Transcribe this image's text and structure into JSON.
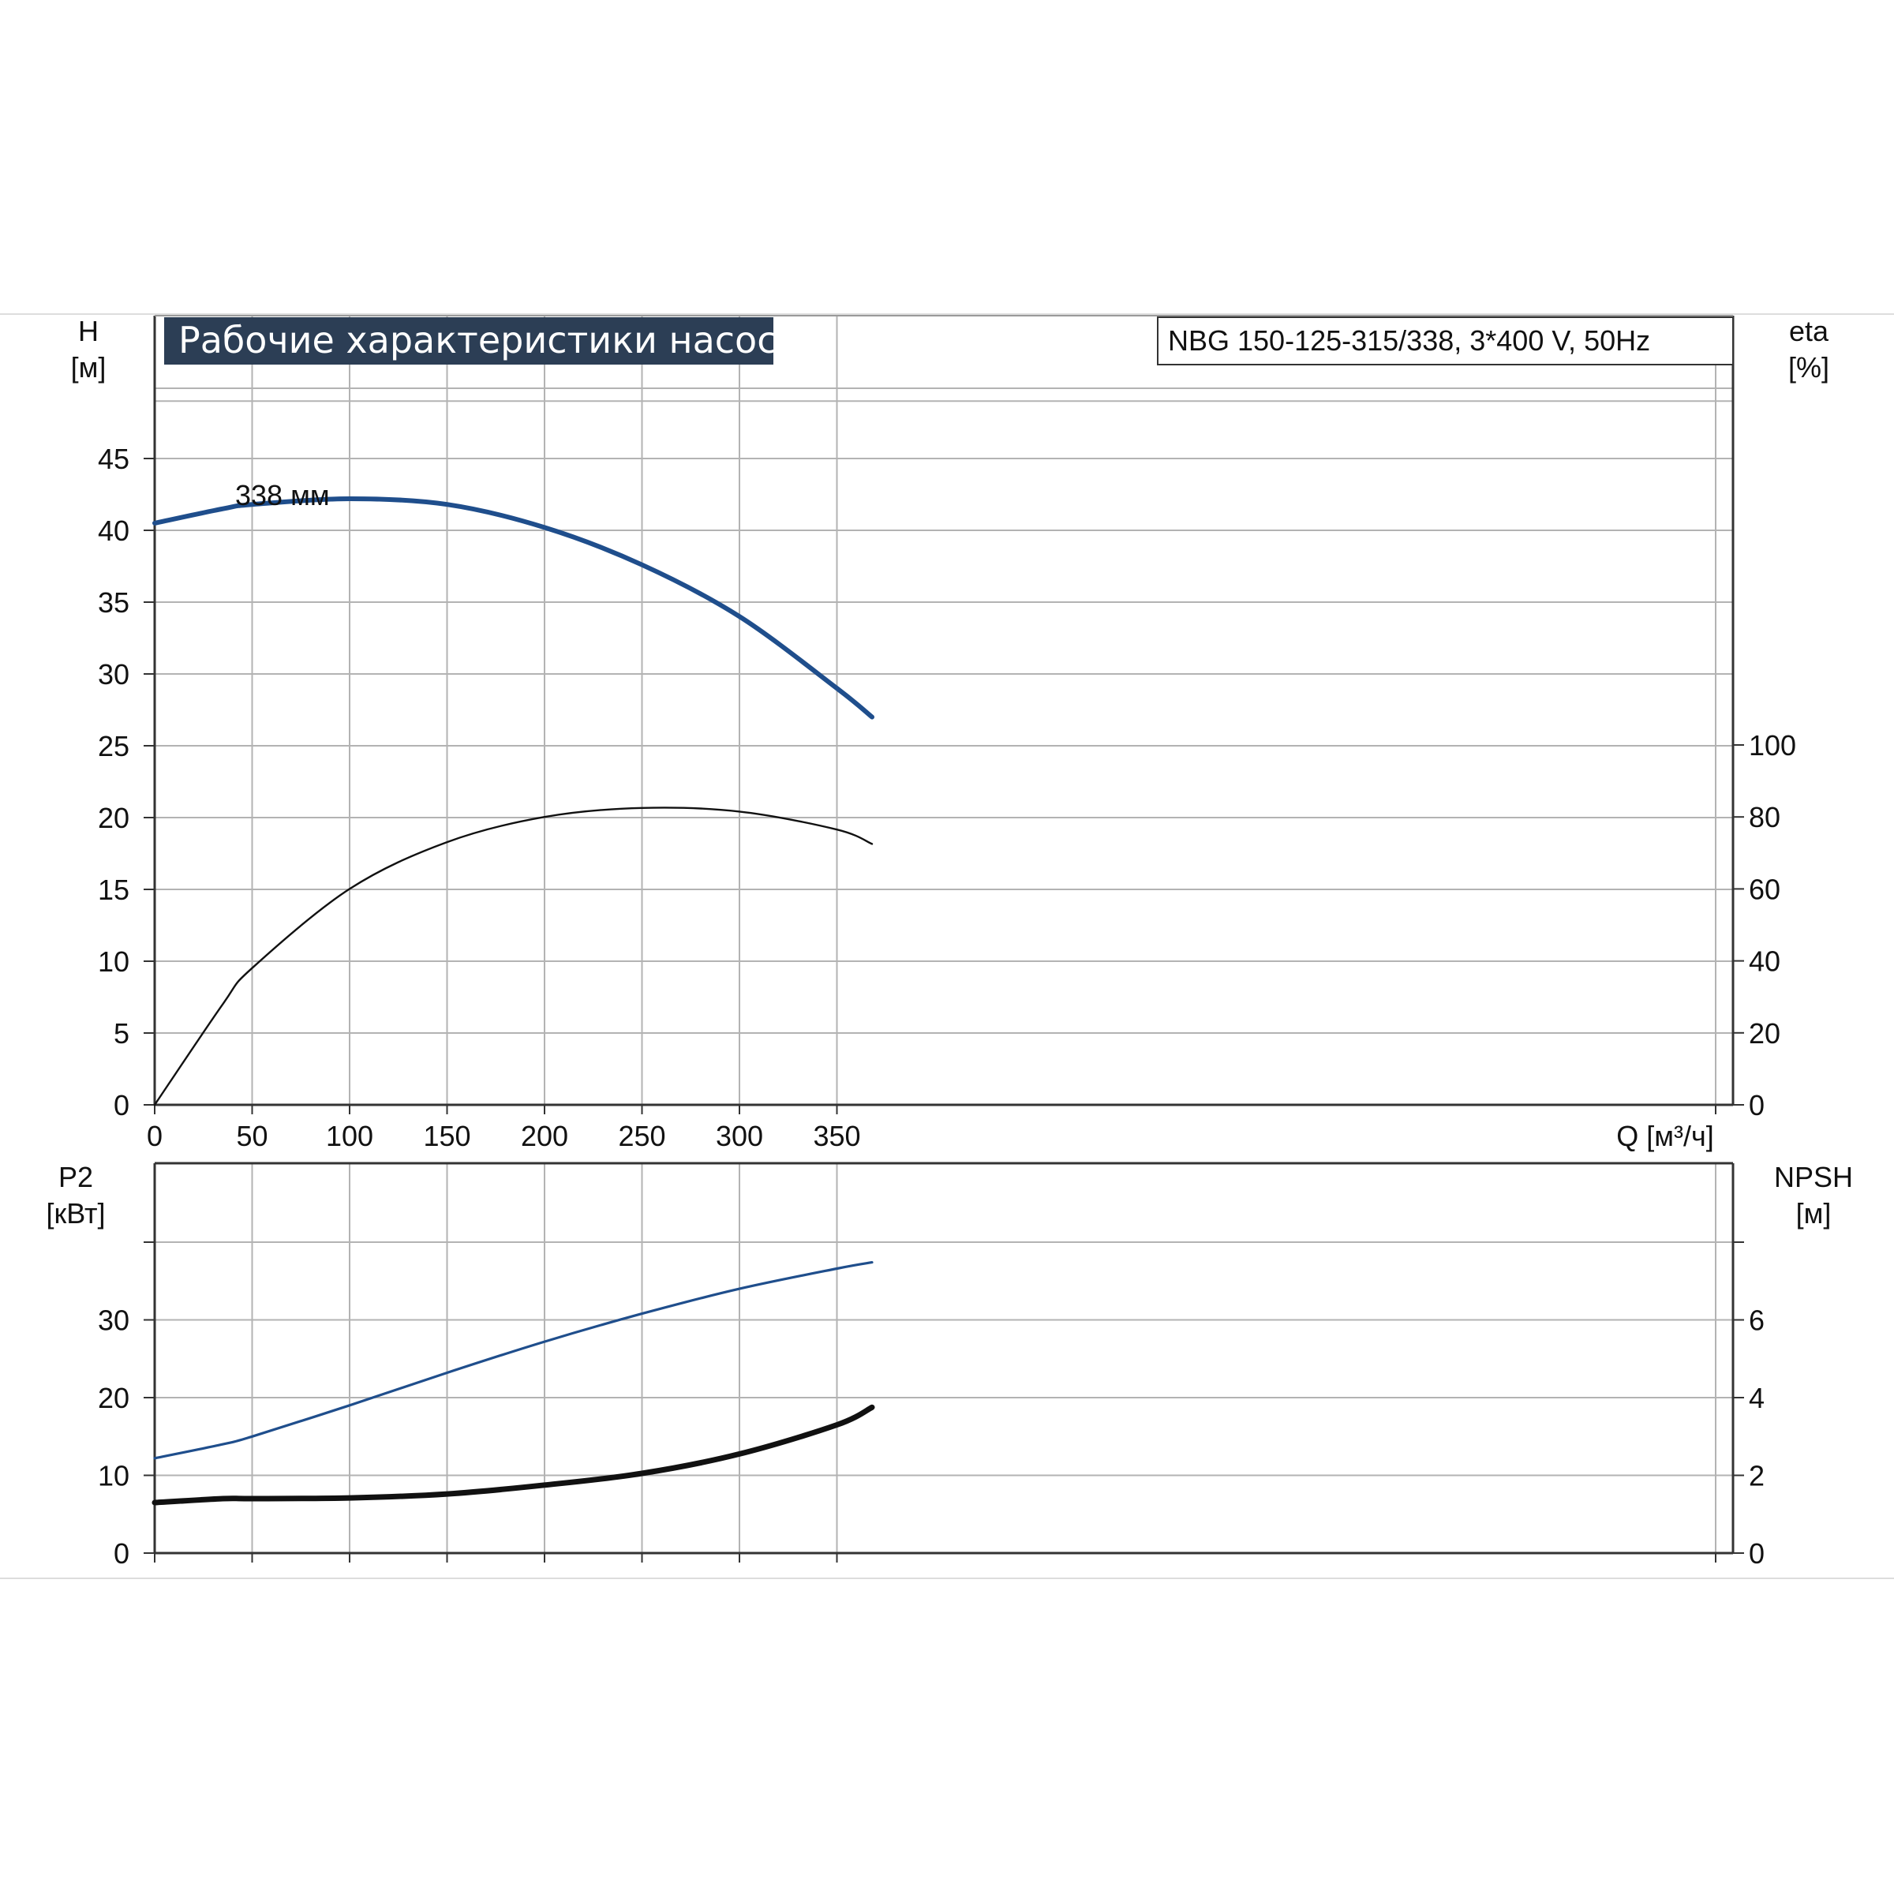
{
  "title": "Рабочие характеристики насоса",
  "model": "NBG 150-125-315/338, 3*400 V, 50Hz",
  "colors": {
    "blue": "#1f4e8c",
    "black": "#111111",
    "grid": "#b3b3b3",
    "title_bg": "#2c3e55"
  },
  "chart_data": [
    {
      "type": "line",
      "xlabel": "Q [м³/ч]",
      "ylabel_left": [
        "H",
        "[м]"
      ],
      "ylabel_right": [
        "eta",
        "[%]"
      ],
      "xlim": [
        0,
        400
      ],
      "ylim_left": [
        0,
        50
      ],
      "ylim_right": [
        0,
        125
      ],
      "x_ticks": [
        "0",
        "50",
        "100",
        "150",
        "200",
        "250",
        "300",
        "350"
      ],
      "y_ticks_left": [
        "0",
        "5",
        "10",
        "15",
        "20",
        "25",
        "30",
        "35",
        "40",
        "45"
      ],
      "y_ticks_right": [
        "0",
        "20",
        "40",
        "60",
        "80",
        "100"
      ],
      "annotation": "338 мм",
      "grid": true,
      "series": [
        {
          "axis": "left",
          "color": "#1f4e8c",
          "x": [
            0,
            35,
            50,
            100,
            150,
            200,
            250,
            300,
            350,
            368
          ],
          "values": [
            40.5,
            41.5,
            41.8,
            42.2,
            41.8,
            40.2,
            37.6,
            34,
            29,
            27
          ]
        },
        {
          "axis": "right",
          "color": "#111111",
          "x": [
            0,
            35,
            50,
            100,
            150,
            200,
            250,
            300,
            350,
            368
          ],
          "values": [
            0,
            28,
            38,
            60,
            73,
            80,
            82.5,
            81.5,
            76.5,
            72.5
          ]
        }
      ]
    },
    {
      "type": "line",
      "ylabel_left": [
        "P2",
        "[кВт]"
      ],
      "ylabel_right": [
        "NPSH",
        "[м]"
      ],
      "xlim": [
        0,
        400
      ],
      "ylim_left": [
        0,
        50
      ],
      "ylim_right": [
        0,
        10
      ],
      "y_ticks_left": [
        "0",
        "10",
        "20",
        "30"
      ],
      "y_ticks_right": [
        "0",
        "2",
        "4",
        "6"
      ],
      "grid": true,
      "series": [
        {
          "axis": "left",
          "color": "#1f4e8c",
          "x": [
            0,
            35,
            50,
            100,
            150,
            200,
            250,
            300,
            350,
            368
          ],
          "values": [
            12.2,
            14,
            15,
            19,
            23.2,
            27.2,
            30.8,
            34,
            36.6,
            37.4
          ]
        },
        {
          "axis": "right",
          "color": "#111111",
          "x": [
            0,
            35,
            50,
            100,
            150,
            200,
            250,
            300,
            350,
            368
          ],
          "values": [
            1.3,
            1.4,
            1.4,
            1.42,
            1.52,
            1.75,
            2.05,
            2.55,
            3.3,
            3.75
          ]
        }
      ]
    }
  ]
}
